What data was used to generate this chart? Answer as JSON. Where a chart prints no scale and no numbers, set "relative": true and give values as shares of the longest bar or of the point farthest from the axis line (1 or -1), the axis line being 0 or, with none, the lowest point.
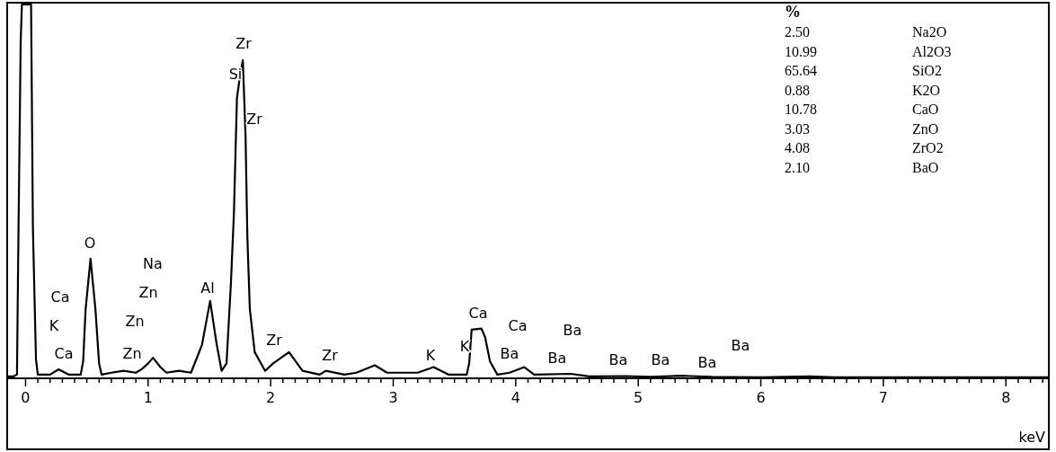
{
  "chart_data": {
    "type": "line",
    "relative": true,
    "xlabel": "keV",
    "color": "#000000",
    "marker": "none",
    "line_style": "solid",
    "grid": false,
    "x": [
      -0.15,
      -0.1,
      -0.07,
      -0.06,
      -0.04,
      -0.03,
      0.045,
      0.06,
      0.085,
      0.1,
      0.2,
      0.27,
      0.35,
      0.45,
      0.47,
      0.49,
      0.53,
      0.57,
      0.6,
      0.62,
      0.7,
      0.8,
      0.9,
      0.95,
      1.0,
      1.04,
      1.1,
      1.15,
      1.25,
      1.35,
      1.44,
      1.506,
      1.56,
      1.6,
      1.64,
      1.675,
      1.7,
      1.725,
      1.75,
      1.773,
      1.795,
      1.81,
      1.83,
      1.87,
      1.955,
      2.02,
      2.15,
      2.26,
      2.4,
      2.45,
      2.6,
      2.7,
      2.85,
      2.95,
      3.2,
      3.33,
      3.45,
      3.6,
      3.62,
      3.64,
      3.72,
      3.75,
      3.79,
      3.85,
      3.95,
      4.07,
      4.15,
      4.45,
      4.6,
      4.9,
      5.1,
      5.35,
      5.6,
      6.0,
      6.4,
      6.6,
      7.0,
      7.5,
      8.0,
      8.35
    ],
    "values": [
      0.005,
      0.005,
      0.01,
      0.33,
      0.9,
      1,
      1,
      0.4,
      0.05,
      0.01,
      0.01,
      0.024,
      0.01,
      0.01,
      0.046,
      0.185,
      0.32,
      0.185,
      0.04,
      0.01,
      0.015,
      0.02,
      0.015,
      0.025,
      0.04,
      0.055,
      0.03,
      0.015,
      0.02,
      0.015,
      0.09,
      0.207,
      0.09,
      0.02,
      0.04,
      0.25,
      0.44,
      0.75,
      0.81,
      0.851,
      0.65,
      0.377,
      0.185,
      0.07,
      0.02,
      0.04,
      0.07,
      0.02,
      0.01,
      0.02,
      0.01,
      0.015,
      0.035,
      0.015,
      0.015,
      0.03,
      0.01,
      0.01,
      0.04,
      0.13,
      0.133,
      0.11,
      0.045,
      0.01,
      0.015,
      0.03,
      0.01,
      0.012,
      0.005,
      0.006,
      0.004,
      0.007,
      0.004,
      0.003,
      0.005,
      0.003,
      0.003,
      0.003,
      0.003,
      0.003
    ],
    "xlim": [
      -0.15,
      8.35
    ],
    "xticks": [
      0,
      {
        "value": 0.1,
        "label": null
      },
      {
        "value": 0.2,
        "label": null
      },
      {
        "value": 0.3,
        "label": null
      },
      {
        "value": 0.4,
        "label": null
      },
      {
        "value": 0.5,
        "label": null
      },
      {
        "value": 0.6,
        "label": null
      },
      {
        "value": 0.7,
        "label": null
      },
      {
        "value": 0.8,
        "label": null
      },
      {
        "value": 0.9,
        "label": null
      },
      1,
      {
        "value": 1.1,
        "label": null
      },
      {
        "value": 1.2,
        "label": null
      },
      {
        "value": 1.3,
        "label": null
      },
      {
        "value": 1.4,
        "label": null
      },
      {
        "value": 1.5,
        "label": null
      },
      {
        "value": 1.6,
        "label": null
      },
      {
        "value": 1.7,
        "label": null
      },
      {
        "value": 1.8,
        "label": null
      },
      {
        "value": 1.9,
        "label": null
      },
      2,
      {
        "value": 2.1,
        "label": null
      },
      {
        "value": 2.2,
        "label": null
      },
      {
        "value": 2.3,
        "label": null
      },
      {
        "value": 2.4,
        "label": null
      },
      {
        "value": 2.5,
        "label": null
      },
      {
        "value": 2.6,
        "label": null
      },
      {
        "value": 2.7,
        "label": null
      },
      {
        "value": 2.8,
        "label": null
      },
      {
        "value": 2.9,
        "label": null
      },
      3,
      {
        "value": 3.1,
        "label": null
      },
      {
        "value": 3.2,
        "label": null
      },
      {
        "value": 3.3,
        "label": null
      },
      {
        "value": 3.4,
        "label": null
      },
      {
        "value": 3.5,
        "label": null
      },
      {
        "value": 3.6,
        "label": null
      },
      {
        "value": 3.7,
        "label": null
      },
      {
        "value": 3.8,
        "label": null
      },
      {
        "value": 3.9,
        "label": null
      },
      4,
      {
        "value": 4.1,
        "label": null
      },
      {
        "value": 4.2,
        "label": null
      },
      {
        "value": 4.3,
        "label": null
      },
      {
        "value": 4.4,
        "label": null
      },
      {
        "value": 4.5,
        "label": null
      },
      {
        "value": 4.6,
        "label": null
      },
      {
        "value": 4.7,
        "label": null
      },
      {
        "value": 4.8,
        "label": null
      },
      {
        "value": 4.9,
        "label": null
      },
      5,
      {
        "value": 5.1,
        "label": null
      },
      {
        "value": 5.2,
        "label": null
      },
      {
        "value": 5.3,
        "label": null
      },
      {
        "value": 5.4,
        "label": null
      },
      {
        "value": 5.5,
        "label": null
      },
      {
        "value": 5.6,
        "label": null
      },
      {
        "value": 5.7,
        "label": null
      },
      {
        "value": 5.8,
        "label": null
      },
      {
        "value": 5.9,
        "label": null
      },
      6,
      {
        "value": 6.1,
        "label": null
      },
      {
        "value": 6.2,
        "label": null
      },
      {
        "value": 6.3,
        "label": null
      },
      {
        "value": 6.4,
        "label": null
      },
      {
        "value": 6.5,
        "label": null
      },
      {
        "value": 6.6,
        "label": null
      },
      {
        "value": 6.7,
        "label": null
      },
      {
        "value": 6.8,
        "label": null
      },
      {
        "value": 6.9,
        "label": null
      },
      7,
      {
        "value": 7.1,
        "label": null
      },
      {
        "value": 7.2,
        "label": null
      },
      {
        "value": 7.3,
        "label": null
      },
      {
        "value": 7.4,
        "label": null
      },
      {
        "value": 7.5,
        "label": null
      },
      {
        "value": 7.6,
        "label": null
      },
      {
        "value": 7.7,
        "label": null
      },
      {
        "value": 7.8,
        "label": null
      },
      {
        "value": 7.9,
        "label": null
      },
      8,
      {
        "value": 8.1,
        "label": null
      },
      {
        "value": 8.2,
        "label": null
      },
      {
        "value": 8.3,
        "label": null
      }
    ],
    "annotations": [
      "Zr",
      "Si",
      "Zr",
      "O",
      "Na",
      "Zn",
      "Ca",
      "K",
      "Zn",
      "Ca",
      "Zn",
      "Al",
      "Zr",
      "Zr",
      "K",
      "K",
      "Ca",
      "Ca",
      "Ba",
      "Ba",
      "Ba",
      "Ba",
      "Ba",
      "Ba",
      "Ba",
      "%",
      "2.50",
      "Na2O",
      "10.99",
      "Al2O3",
      "65.64",
      "SiO2",
      "0.88",
      "K2O",
      "10.78",
      "CaO",
      "3.03",
      "ZnO",
      "4.08",
      "ZrO2",
      "2.10",
      "BaO"
    ]
  }
}
